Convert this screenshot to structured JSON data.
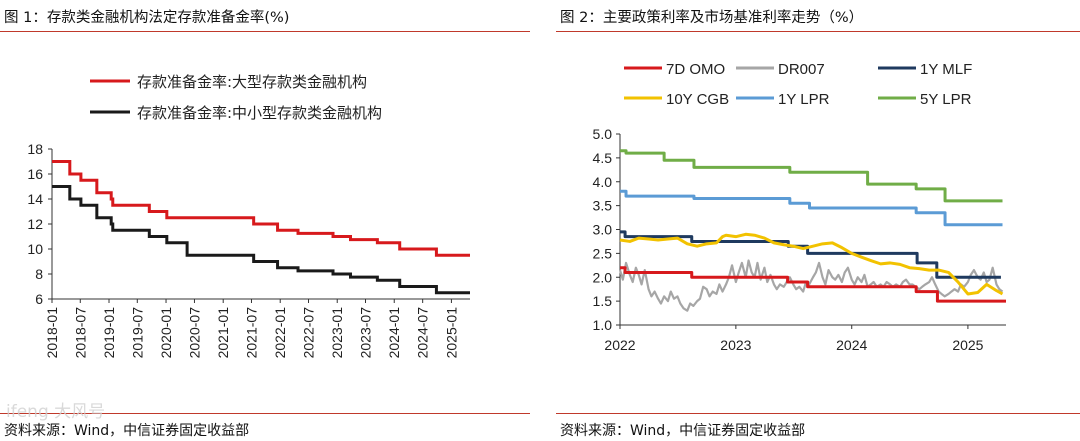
{
  "chart_data": [
    {
      "type": "line",
      "title": "图 1：存款类金融机构法定存款准备金率(%)",
      "source": "资料来源：Wind，中信证券固定收益部",
      "xlabel": "",
      "ylabel": "",
      "ylim": [
        6,
        18
      ],
      "yticks": [
        "18",
        "16",
        "14",
        "12",
        "10",
        "8",
        "6"
      ],
      "xticks": [
        "2018-01",
        "2018-07",
        "2019-01",
        "2019-07",
        "2020-01",
        "2020-07",
        "2021-01",
        "2021-07",
        "2022-01",
        "2022-07",
        "2023-01",
        "2023-07",
        "2024-01",
        "2024-07",
        "2025-01"
      ],
      "series": [
        {
          "name": "存款准备金率:大型存款类金融机构",
          "color": "#d7191c",
          "steps": [
            [
              "2018-01-01",
              17.0
            ],
            [
              "2018-04-25",
              16.0
            ],
            [
              "2018-07-05",
              15.5
            ],
            [
              "2018-10-15",
              14.5
            ],
            [
              "2019-01-15",
              14.0
            ],
            [
              "2019-01-25",
              13.5
            ],
            [
              "2019-09-16",
              13.0
            ],
            [
              "2020-01-06",
              12.5
            ],
            [
              "2021-07-15",
              12.0
            ],
            [
              "2021-12-15",
              11.5
            ],
            [
              "2022-04-25",
              11.25
            ],
            [
              "2022-12-05",
              11.0
            ],
            [
              "2023-03-27",
              10.75
            ],
            [
              "2023-09-15",
              10.5
            ],
            [
              "2024-02-05",
              10.0
            ],
            [
              "2024-09-27",
              9.5
            ],
            [
              "2025-04-30",
              9.5
            ]
          ]
        },
        {
          "name": "存款准备金率:中小型存款类金融机构",
          "color": "#1a1a1a",
          "steps": [
            [
              "2018-01-01",
              15.0
            ],
            [
              "2018-04-25",
              14.0
            ],
            [
              "2018-07-05",
              13.5
            ],
            [
              "2018-10-15",
              12.5
            ],
            [
              "2019-01-15",
              12.0
            ],
            [
              "2019-01-25",
              11.5
            ],
            [
              "2019-09-16",
              11.0
            ],
            [
              "2020-01-06",
              10.5
            ],
            [
              "2020-05-15",
              9.5
            ],
            [
              "2021-07-15",
              9.0
            ],
            [
              "2021-12-15",
              8.5
            ],
            [
              "2022-04-25",
              8.25
            ],
            [
              "2022-12-05",
              8.0
            ],
            [
              "2023-03-27",
              7.75
            ],
            [
              "2023-09-15",
              7.5
            ],
            [
              "2024-02-05",
              7.0
            ],
            [
              "2024-09-27",
              6.5
            ],
            [
              "2025-04-30",
              6.5
            ]
          ]
        }
      ]
    },
    {
      "type": "line",
      "title": "图 2：主要政策利率及市场基准利率走势（%）",
      "source": "资料来源：Wind，中信证券固定收益部",
      "xlabel": "",
      "ylabel": "",
      "ylim": [
        1.0,
        5.0
      ],
      "yticks": [
        "5.0",
        "4.5",
        "4.0",
        "3.5",
        "3.0",
        "2.5",
        "2.0",
        "1.5",
        "1.0"
      ],
      "xticks": [
        "2022",
        "2023",
        "2024",
        "2025"
      ],
      "series": [
        {
          "name": "7D OMO",
          "color": "#d7191c",
          "steps": [
            [
              "2022-01-01",
              2.2
            ],
            [
              "2022-01-17",
              2.1
            ],
            [
              "2022-08-15",
              2.0
            ],
            [
              "2023-06-13",
              1.9
            ],
            [
              "2023-08-15",
              1.8
            ],
            [
              "2024-07-22",
              1.7
            ],
            [
              "2024-09-27",
              1.5
            ],
            [
              "2025-05-01",
              1.5
            ]
          ]
        },
        {
          "name": "DR007",
          "color": "#a6a6a6",
          "points": [
            [
              "2022-01-01",
              2.15
            ],
            [
              "2022-01-10",
              1.95
            ],
            [
              "2022-01-20",
              2.3
            ],
            [
              "2022-02-01",
              2.05
            ],
            [
              "2022-02-10",
              1.9
            ],
            [
              "2022-02-20",
              2.2
            ],
            [
              "2022-03-01",
              2.05
            ],
            [
              "2022-03-10",
              1.85
            ],
            [
              "2022-03-20",
              2.15
            ],
            [
              "2022-04-01",
              1.75
            ],
            [
              "2022-04-10",
              1.6
            ],
            [
              "2022-04-20",
              1.7
            ],
            [
              "2022-05-01",
              1.55
            ],
            [
              "2022-05-10",
              1.45
            ],
            [
              "2022-05-20",
              1.6
            ],
            [
              "2022-06-01",
              1.5
            ],
            [
              "2022-06-10",
              1.7
            ],
            [
              "2022-06-20",
              1.55
            ],
            [
              "2022-07-01",
              1.6
            ],
            [
              "2022-07-10",
              1.45
            ],
            [
              "2022-07-20",
              1.35
            ],
            [
              "2022-08-01",
              1.3
            ],
            [
              "2022-08-10",
              1.45
            ],
            [
              "2022-08-20",
              1.4
            ],
            [
              "2022-09-01",
              1.5
            ],
            [
              "2022-09-10",
              1.55
            ],
            [
              "2022-09-20",
              1.8
            ],
            [
              "2022-10-01",
              1.75
            ],
            [
              "2022-10-10",
              1.6
            ],
            [
              "2022-10-20",
              1.7
            ],
            [
              "2022-11-01",
              1.65
            ],
            [
              "2022-11-10",
              1.85
            ],
            [
              "2022-11-20",
              1.7
            ],
            [
              "2022-12-01",
              1.85
            ],
            [
              "2022-12-10",
              2.0
            ],
            [
              "2022-12-20",
              2.25
            ],
            [
              "2023-01-01",
              1.9
            ],
            [
              "2023-01-10",
              2.1
            ],
            [
              "2023-01-20",
              2.3
            ],
            [
              "2023-02-01",
              2.0
            ],
            [
              "2023-02-10",
              2.35
            ],
            [
              "2023-02-20",
              2.1
            ],
            [
              "2023-03-01",
              2.0
            ],
            [
              "2023-03-10",
              2.3
            ],
            [
              "2023-03-20",
              1.95
            ],
            [
              "2023-04-01",
              2.2
            ],
            [
              "2023-04-10",
              1.9
            ],
            [
              "2023-04-20",
              2.05
            ],
            [
              "2023-05-01",
              1.85
            ],
            [
              "2023-05-10",
              1.75
            ],
            [
              "2023-05-20",
              1.85
            ],
            [
              "2023-06-01",
              1.8
            ],
            [
              "2023-06-10",
              1.9
            ],
            [
              "2023-06-20",
              2.0
            ],
            [
              "2023-07-01",
              1.85
            ],
            [
              "2023-07-10",
              1.75
            ],
            [
              "2023-07-20",
              1.8
            ],
            [
              "2023-08-01",
              1.7
            ],
            [
              "2023-08-10",
              1.9
            ],
            [
              "2023-08-20",
              1.85
            ],
            [
              "2023-09-01",
              2.0
            ],
            [
              "2023-09-10",
              2.1
            ],
            [
              "2023-09-20",
              2.3
            ],
            [
              "2023-10-01",
              2.0
            ],
            [
              "2023-10-10",
              1.85
            ],
            [
              "2023-10-20",
              2.15
            ],
            [
              "2023-11-01",
              2.0
            ],
            [
              "2023-11-10",
              1.95
            ],
            [
              "2023-11-20",
              2.05
            ],
            [
              "2023-12-01",
              1.9
            ],
            [
              "2023-12-10",
              2.1
            ],
            [
              "2023-12-20",
              2.2
            ],
            [
              "2024-01-01",
              1.95
            ],
            [
              "2024-01-10",
              1.85
            ],
            [
              "2024-01-20",
              2.0
            ],
            [
              "2024-02-01",
              1.9
            ],
            [
              "2024-02-10",
              2.05
            ],
            [
              "2024-02-20",
              1.8
            ],
            [
              "2024-03-01",
              1.85
            ],
            [
              "2024-03-10",
              1.9
            ],
            [
              "2024-03-20",
              1.8
            ],
            [
              "2024-04-01",
              1.85
            ],
            [
              "2024-04-10",
              1.8
            ],
            [
              "2024-04-20",
              1.9
            ],
            [
              "2024-05-01",
              1.85
            ],
            [
              "2024-05-10",
              1.8
            ],
            [
              "2024-05-20",
              1.85
            ],
            [
              "2024-06-01",
              1.8
            ],
            [
              "2024-06-10",
              1.9
            ],
            [
              "2024-06-20",
              1.95
            ],
            [
              "2024-07-01",
              1.85
            ],
            [
              "2024-07-10",
              1.85
            ],
            [
              "2024-07-20",
              1.8
            ],
            [
              "2024-08-01",
              1.75
            ],
            [
              "2024-08-10",
              1.8
            ],
            [
              "2024-08-20",
              1.85
            ],
            [
              "2024-09-01",
              1.9
            ],
            [
              "2024-09-10",
              2.0
            ],
            [
              "2024-09-20",
              1.85
            ],
            [
              "2024-10-01",
              1.7
            ],
            [
              "2024-10-10",
              1.65
            ],
            [
              "2024-10-20",
              1.6
            ],
            [
              "2024-11-01",
              1.65
            ],
            [
              "2024-11-10",
              1.7
            ],
            [
              "2024-11-20",
              1.75
            ],
            [
              "2024-12-01",
              1.7
            ],
            [
              "2024-12-10",
              1.85
            ],
            [
              "2024-12-20",
              1.8
            ],
            [
              "2025-01-01",
              1.9
            ],
            [
              "2025-01-10",
              2.05
            ],
            [
              "2025-01-20",
              2.15
            ],
            [
              "2025-02-01",
              2.0
            ],
            [
              "2025-02-10",
              1.95
            ],
            [
              "2025-02-20",
              2.1
            ],
            [
              "2025-03-01",
              1.9
            ],
            [
              "2025-03-10",
              1.95
            ],
            [
              "2025-03-20",
              2.2
            ],
            [
              "2025-04-01",
              1.85
            ],
            [
              "2025-04-10",
              1.75
            ],
            [
              "2025-04-20",
              1.7
            ]
          ]
        },
        {
          "name": "1Y MLF",
          "color": "#1f3a5f",
          "steps": [
            [
              "2022-01-01",
              2.95
            ],
            [
              "2022-01-17",
              2.85
            ],
            [
              "2022-08-15",
              2.75
            ],
            [
              "2023-06-15",
              2.65
            ],
            [
              "2023-08-15",
              2.5
            ],
            [
              "2024-07-25",
              2.3
            ],
            [
              "2024-09-25",
              2.0
            ],
            [
              "2025-04-15",
              2.0
            ]
          ]
        },
        {
          "name": "10Y CGB",
          "color": "#f2c200",
          "points": [
            [
              "2022-01-01",
              2.78
            ],
            [
              "2022-02-01",
              2.75
            ],
            [
              "2022-03-01",
              2.82
            ],
            [
              "2022-04-01",
              2.8
            ],
            [
              "2022-05-01",
              2.78
            ],
            [
              "2022-06-01",
              2.8
            ],
            [
              "2022-07-01",
              2.82
            ],
            [
              "2022-08-01",
              2.7
            ],
            [
              "2022-09-01",
              2.65
            ],
            [
              "2022-10-01",
              2.7
            ],
            [
              "2022-11-01",
              2.72
            ],
            [
              "2022-11-20",
              2.85
            ],
            [
              "2022-12-01",
              2.88
            ],
            [
              "2023-01-01",
              2.85
            ],
            [
              "2023-02-01",
              2.9
            ],
            [
              "2023-03-01",
              2.88
            ],
            [
              "2023-04-01",
              2.82
            ],
            [
              "2023-05-01",
              2.72
            ],
            [
              "2023-06-01",
              2.68
            ],
            [
              "2023-07-01",
              2.65
            ],
            [
              "2023-08-01",
              2.6
            ],
            [
              "2023-09-01",
              2.65
            ],
            [
              "2023-10-01",
              2.7
            ],
            [
              "2023-11-01",
              2.72
            ],
            [
              "2023-12-01",
              2.62
            ],
            [
              "2024-01-01",
              2.5
            ],
            [
              "2024-02-01",
              2.42
            ],
            [
              "2024-03-01",
              2.35
            ],
            [
              "2024-04-01",
              2.28
            ],
            [
              "2024-05-01",
              2.3
            ],
            [
              "2024-06-01",
              2.27
            ],
            [
              "2024-07-01",
              2.2
            ],
            [
              "2024-08-01",
              2.18
            ],
            [
              "2024-09-01",
              2.15
            ],
            [
              "2024-10-01",
              2.15
            ],
            [
              "2024-11-01",
              2.1
            ],
            [
              "2024-12-01",
              1.9
            ],
            [
              "2025-01-01",
              1.65
            ],
            [
              "2025-02-01",
              1.68
            ],
            [
              "2025-03-01",
              1.85
            ],
            [
              "2025-04-01",
              1.72
            ],
            [
              "2025-04-20",
              1.65
            ]
          ]
        },
        {
          "name": "1Y LPR",
          "color": "#5b9bd5",
          "steps": [
            [
              "2022-01-01",
              3.8
            ],
            [
              "2022-01-20",
              3.7
            ],
            [
              "2022-08-22",
              3.65
            ],
            [
              "2023-06-20",
              3.55
            ],
            [
              "2023-08-21",
              3.45
            ],
            [
              "2024-07-22",
              3.35
            ],
            [
              "2024-10-21",
              3.1
            ],
            [
              "2025-04-20",
              3.1
            ]
          ]
        },
        {
          "name": "5Y LPR",
          "color": "#70ad47",
          "steps": [
            [
              "2022-01-01",
              4.65
            ],
            [
              "2022-01-20",
              4.6
            ],
            [
              "2022-05-20",
              4.45
            ],
            [
              "2022-08-22",
              4.3
            ],
            [
              "2023-06-20",
              4.2
            ],
            [
              "2024-02-20",
              3.95
            ],
            [
              "2024-07-22",
              3.85
            ],
            [
              "2024-10-21",
              3.6
            ],
            [
              "2025-04-20",
              3.6
            ]
          ]
        }
      ]
    }
  ],
  "watermark": "ifeng 大风号"
}
